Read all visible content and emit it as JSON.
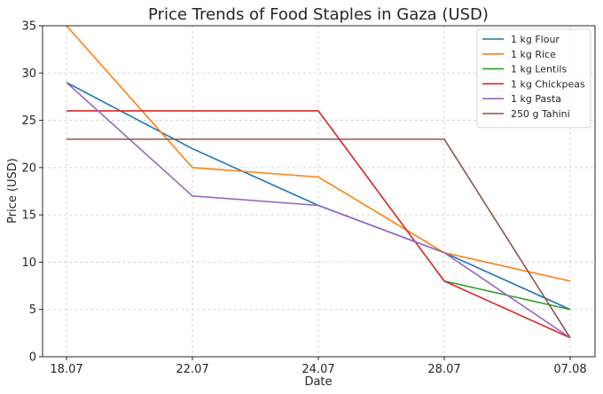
{
  "chart_data": {
    "type": "line",
    "title": "Price Trends of Food Staples in Gaza (USD)",
    "xlabel": "Date",
    "ylabel": "Price (USD)",
    "categories": [
      "18.07",
      "22.07",
      "24.07",
      "28.07",
      "07.08"
    ],
    "ylim": [
      0,
      35
    ],
    "yticks": [
      0,
      5,
      10,
      15,
      20,
      25,
      30,
      35
    ],
    "grid": true,
    "legend_position": "top-right",
    "series": [
      {
        "name": "1 kg Flour",
        "color": "#1f77b4",
        "values": [
          29,
          22,
          16,
          11,
          5
        ]
      },
      {
        "name": "1 kg Rice",
        "color": "#ff7f0e",
        "values": [
          35,
          20,
          19,
          11,
          8
        ]
      },
      {
        "name": "1 kg Lentils",
        "color": "#2ca02c",
        "values": [
          null,
          null,
          null,
          8,
          5
        ]
      },
      {
        "name": "1 kg Chickpeas",
        "color": "#d62728",
        "values": [
          26,
          26,
          26,
          8,
          2
        ]
      },
      {
        "name": "1 kg Pasta",
        "color": "#9467bd",
        "values": [
          29,
          17,
          16,
          11,
          2
        ]
      },
      {
        "name": "250 g Tahini",
        "color": "#8c564b",
        "values": [
          23,
          23,
          23,
          23,
          2
        ]
      }
    ]
  }
}
